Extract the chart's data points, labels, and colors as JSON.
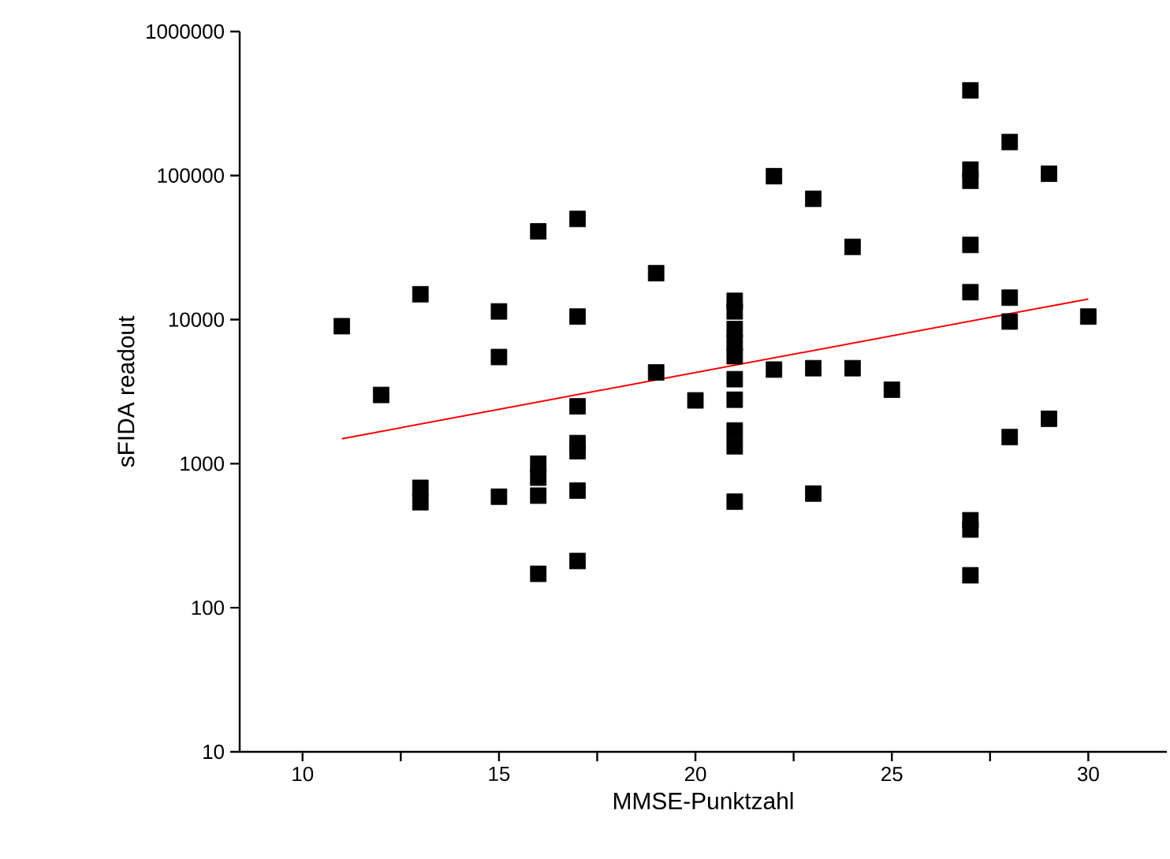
{
  "chart_data": {
    "type": "scatter",
    "xlabel": "MMSE-Punktzahl",
    "ylabel": "sFIDA readout",
    "log": "y",
    "xlim": [
      8.4,
      32
    ],
    "ylim": [
      10,
      1000000
    ],
    "xticks": [
      10,
      {
        "value": 12.5,
        "label": null
      },
      15,
      {
        "value": 17.5,
        "label": null
      },
      20,
      {
        "value": 22.5,
        "label": null
      },
      25,
      {
        "value": 27.5,
        "label": null
      },
      30
    ],
    "yticks": [
      10,
      100,
      1000,
      10000,
      100000,
      1000000
    ],
    "series": [
      {
        "color": "#000000",
        "marker": "square",
        "x": [
          11,
          12,
          13,
          13,
          13,
          15,
          15,
          15,
          16,
          16,
          16,
          16,
          16,
          17,
          17,
          17,
          17,
          17,
          17,
          17,
          19,
          19,
          20,
          21,
          21,
          21,
          21,
          21,
          21,
          21,
          21,
          21,
          21,
          22,
          22,
          23,
          23,
          23,
          24,
          24,
          25,
          27,
          27,
          27,
          27,
          27,
          27,
          27,
          27,
          28,
          28,
          28,
          28,
          29,
          29,
          30
        ],
        "values": [
          9000,
          3000,
          15000,
          680,
          540,
          11400,
          5500,
          590,
          41000,
          1000,
          800,
          600,
          172,
          50000,
          10500,
          2500,
          1390,
          1220,
          650,
          211,
          21000,
          4300,
          2750,
          13500,
          11400,
          8600,
          6900,
          5570,
          3860,
          2780,
          1700,
          1320,
          545,
          99000,
          4500,
          69000,
          4600,
          620,
          32000,
          4600,
          3260,
          390000,
          110000,
          92000,
          33000,
          15500,
          405,
          349,
          168,
          171000,
          14200,
          9700,
          1530,
          103000,
          2050,
          10500
        ]
      },
      {
        "type": "line",
        "color": "#ff0000",
        "marker": "none",
        "line_style": "solid",
        "x": [
          11,
          30
        ],
        "values": [
          1490,
          13900
        ]
      }
    ]
  }
}
